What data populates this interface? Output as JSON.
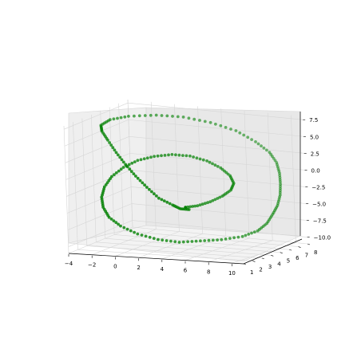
{
  "chart_data": {
    "type": "scatter",
    "projection": "3d",
    "title": "",
    "xlabel": "",
    "ylabel": "",
    "zlabel": "",
    "grid": true,
    "marker_color": "#008000",
    "xlim": [
      -4,
      11
    ],
    "ylim": [
      1,
      8
    ],
    "zlim": [
      -11,
      8
    ],
    "x_ticks": [
      "−4",
      "−2",
      "0",
      "2",
      "4",
      "6",
      "8",
      "10"
    ],
    "y_ticks": [
      "1",
      "2",
      "3",
      "4",
      "5",
      "6",
      "7",
      "8"
    ],
    "z_ticks": [
      "−10.0",
      "−7.5",
      "−5.0",
      "−2.5",
      "0.0",
      "2.5",
      "5.0",
      "7.5"
    ],
    "x_tick_values": [
      -4,
      -2,
      0,
      2,
      4,
      6,
      8,
      10
    ],
    "y_tick_values": [
      1,
      2,
      3,
      4,
      5,
      6,
      7,
      8
    ],
    "z_tick_values": [
      -10,
      -7.5,
      -5,
      -2.5,
      0,
      2.5,
      5,
      7.5
    ],
    "series": [
      {
        "points": [
          [
            4.5,
            3.5,
            -4.8
          ],
          [
            4.0,
            3.2,
            -4.6
          ],
          [
            3.5,
            3.0,
            -4.0
          ],
          [
            2.5,
            2.8,
            -3.0
          ],
          [
            1.5,
            2.8,
            -1.5
          ],
          [
            0.5,
            2.9,
            0.0
          ],
          [
            -0.5,
            3.1,
            1.5
          ],
          [
            -1.5,
            3.4,
            3.0
          ],
          [
            -2.5,
            3.8,
            4.5
          ],
          [
            -3.3,
            4.2,
            5.5
          ],
          [
            -3.6,
            4.5,
            6.2
          ],
          [
            -3.2,
            5.0,
            6.8
          ],
          [
            -2.0,
            5.5,
            7.2
          ],
          [
            0.0,
            6.0,
            7.4
          ],
          [
            2.0,
            6.4,
            7.2
          ],
          [
            4.0,
            6.8,
            6.5
          ],
          [
            6.0,
            7.0,
            5.5
          ],
          [
            7.5,
            7.2,
            4.0
          ],
          [
            8.5,
            7.4,
            2.5
          ],
          [
            9.0,
            7.5,
            1.0
          ],
          [
            9.3,
            7.4,
            -0.5
          ],
          [
            9.5,
            7.2,
            -2.0
          ],
          [
            9.6,
            7.0,
            -3.5
          ],
          [
            9.5,
            6.8,
            -5.0
          ],
          [
            9.3,
            6.5,
            -6.2
          ],
          [
            9.0,
            6.2,
            -7.5
          ],
          [
            8.5,
            5.8,
            -8.5
          ],
          [
            7.5,
            5.4,
            -9.3
          ],
          [
            6.0,
            5.0,
            -9.8
          ],
          [
            4.5,
            4.6,
            -10.0
          ],
          [
            3.0,
            4.2,
            -10.2
          ],
          [
            1.5,
            3.8,
            -9.8
          ],
          [
            0.0,
            3.5,
            -9.0
          ],
          [
            -1.2,
            3.2,
            -7.8
          ],
          [
            -2.0,
            3.0,
            -6.5
          ],
          [
            -2.4,
            2.9,
            -5.0
          ],
          [
            -2.5,
            2.9,
            -3.5
          ],
          [
            -2.3,
            3.0,
            -2.0
          ],
          [
            -1.8,
            3.2,
            -0.5
          ],
          [
            -1.0,
            3.5,
            0.8
          ],
          [
            0.0,
            3.8,
            1.8
          ],
          [
            1.2,
            4.1,
            2.4
          ],
          [
            2.5,
            4.4,
            2.7
          ],
          [
            3.8,
            4.7,
            2.5
          ],
          [
            5.0,
            5.0,
            1.8
          ],
          [
            6.0,
            5.2,
            0.8
          ],
          [
            6.7,
            5.3,
            -0.3
          ],
          [
            7.0,
            5.3,
            -1.4
          ],
          [
            6.8,
            5.2,
            -2.4
          ],
          [
            6.2,
            5.0,
            -3.3
          ],
          [
            5.4,
            4.7,
            -4.1
          ],
          [
            4.6,
            4.3,
            -4.6
          ],
          [
            3.8,
            4.0,
            -4.8
          ]
        ]
      }
    ]
  }
}
